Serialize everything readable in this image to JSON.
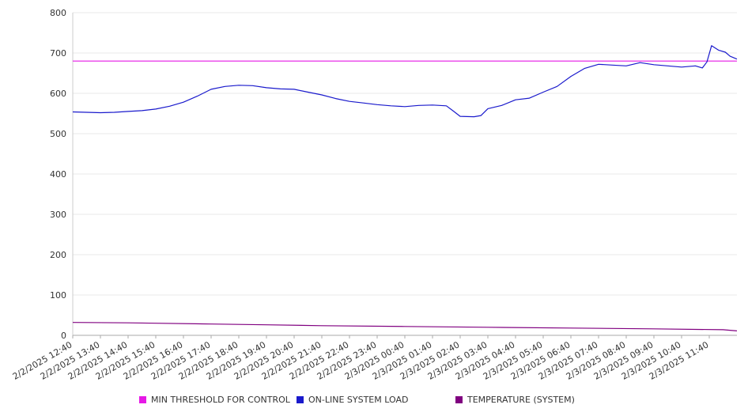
{
  "chart_data": {
    "type": "line",
    "title": "",
    "xlabel": "",
    "ylabel": "",
    "ylim": [
      0,
      800
    ],
    "yticks": [
      "0",
      "100",
      "200",
      "300",
      "400",
      "500",
      "600",
      "700",
      "800"
    ],
    "grid": true,
    "legend_position": "bottom",
    "x_start": "2/2/2025 12:40",
    "x_end": "2/3/2025 12:40",
    "x_tick_labels": [
      "2/2/2025 12:40",
      "2/2/2025 13:40",
      "2/2/2025 14:40",
      "2/2/2025 15:40",
      "2/2/2025 16:40",
      "2/2/2025 17:40",
      "2/2/2025 18:40",
      "2/2/2025 19:40",
      "2/2/2025 20:40",
      "2/2/2025 21:40",
      "2/2/2025 22:40",
      "2/2/2025 23:40",
      "2/3/2025 00:40",
      "2/3/2025 01:40",
      "2/3/2025 02:40",
      "2/3/2025 03:40",
      "2/3/2025 04:40",
      "2/3/2025 05:40",
      "2/3/2025 06:40",
      "2/3/2025 07:40",
      "2/3/2025 08:40",
      "2/3/2025 09:40",
      "2/3/2025 10:40",
      "2/3/2025 11:40"
    ],
    "series": [
      {
        "name": "MIN THRESHOLD FOR CONTROL",
        "color": "#e619e6",
        "points": [
          [
            "2/2/2025 12:40",
            680
          ],
          [
            "2/3/2025 12:40",
            680
          ]
        ]
      },
      {
        "name": "ON-LINE SYSTEM LOAD",
        "color": "#1a1acc",
        "points": [
          [
            "2/2/2025 12:40",
            554
          ],
          [
            "2/2/2025 13:10",
            553
          ],
          [
            "2/2/2025 13:40",
            552
          ],
          [
            "2/2/2025 14:10",
            553
          ],
          [
            "2/2/2025 14:40",
            555
          ],
          [
            "2/2/2025 15:10",
            557
          ],
          [
            "2/2/2025 15:40",
            561
          ],
          [
            "2/2/2025 16:10",
            568
          ],
          [
            "2/2/2025 16:40",
            578
          ],
          [
            "2/2/2025 17:10",
            593
          ],
          [
            "2/2/2025 17:40",
            610
          ],
          [
            "2/2/2025 18:10",
            617
          ],
          [
            "2/2/2025 18:40",
            620
          ],
          [
            "2/2/2025 19:10",
            619
          ],
          [
            "2/2/2025 19:40",
            614
          ],
          [
            "2/2/2025 20:10",
            611
          ],
          [
            "2/2/2025 20:40",
            610
          ],
          [
            "2/2/2025 21:10",
            603
          ],
          [
            "2/2/2025 21:40",
            596
          ],
          [
            "2/2/2025 22:10",
            587
          ],
          [
            "2/2/2025 22:40",
            580
          ],
          [
            "2/2/2025 23:10",
            576
          ],
          [
            "2/2/2025 23:40",
            572
          ],
          [
            "2/3/2025 00:10",
            569
          ],
          [
            "2/3/2025 00:40",
            567
          ],
          [
            "2/3/2025 01:10",
            570
          ],
          [
            "2/3/2025 01:40",
            571
          ],
          [
            "2/3/2025 02:10",
            569
          ],
          [
            "2/3/2025 02:25",
            556
          ],
          [
            "2/3/2025 02:40",
            543
          ],
          [
            "2/3/2025 03:10",
            542
          ],
          [
            "2/3/2025 03:25",
            545
          ],
          [
            "2/3/2025 03:40",
            562
          ],
          [
            "2/3/2025 04:10",
            570
          ],
          [
            "2/3/2025 04:40",
            584
          ],
          [
            "2/3/2025 05:10",
            588
          ],
          [
            "2/3/2025 05:40",
            603
          ],
          [
            "2/3/2025 06:10",
            617
          ],
          [
            "2/3/2025 06:40",
            642
          ],
          [
            "2/3/2025 07:10",
            662
          ],
          [
            "2/3/2025 07:40",
            672
          ],
          [
            "2/3/2025 08:10",
            670
          ],
          [
            "2/3/2025 08:40",
            668
          ],
          [
            "2/3/2025 09:10",
            676
          ],
          [
            "2/3/2025 09:40",
            671
          ],
          [
            "2/3/2025 10:10",
            668
          ],
          [
            "2/3/2025 10:40",
            665
          ],
          [
            "2/3/2025 11:10",
            668
          ],
          [
            "2/3/2025 11:25",
            663
          ],
          [
            "2/3/2025 11:35",
            678
          ],
          [
            "2/3/2025 11:45",
            718
          ],
          [
            "2/3/2025 12:00",
            707
          ],
          [
            "2/3/2025 12:15",
            702
          ],
          [
            "2/3/2025 12:25",
            692
          ],
          [
            "2/3/2025 12:40",
            685
          ]
        ]
      },
      {
        "name": "TEMPERATURE (SYSTEM)",
        "color": "#800080",
        "points": [
          [
            "2/2/2025 12:40",
            32
          ],
          [
            "2/2/2025 14:40",
            31
          ],
          [
            "2/2/2025 15:40",
            30
          ],
          [
            "2/2/2025 17:40",
            28
          ],
          [
            "2/2/2025 19:40",
            26
          ],
          [
            "2/2/2025 21:40",
            24
          ],
          [
            "2/3/2025 00:40",
            22
          ],
          [
            "2/3/2025 03:40",
            20
          ],
          [
            "2/3/2025 06:40",
            18
          ],
          [
            "2/3/2025 09:40",
            16
          ],
          [
            "2/3/2025 12:10",
            14
          ],
          [
            "2/3/2025 12:40",
            11
          ]
        ]
      }
    ]
  }
}
